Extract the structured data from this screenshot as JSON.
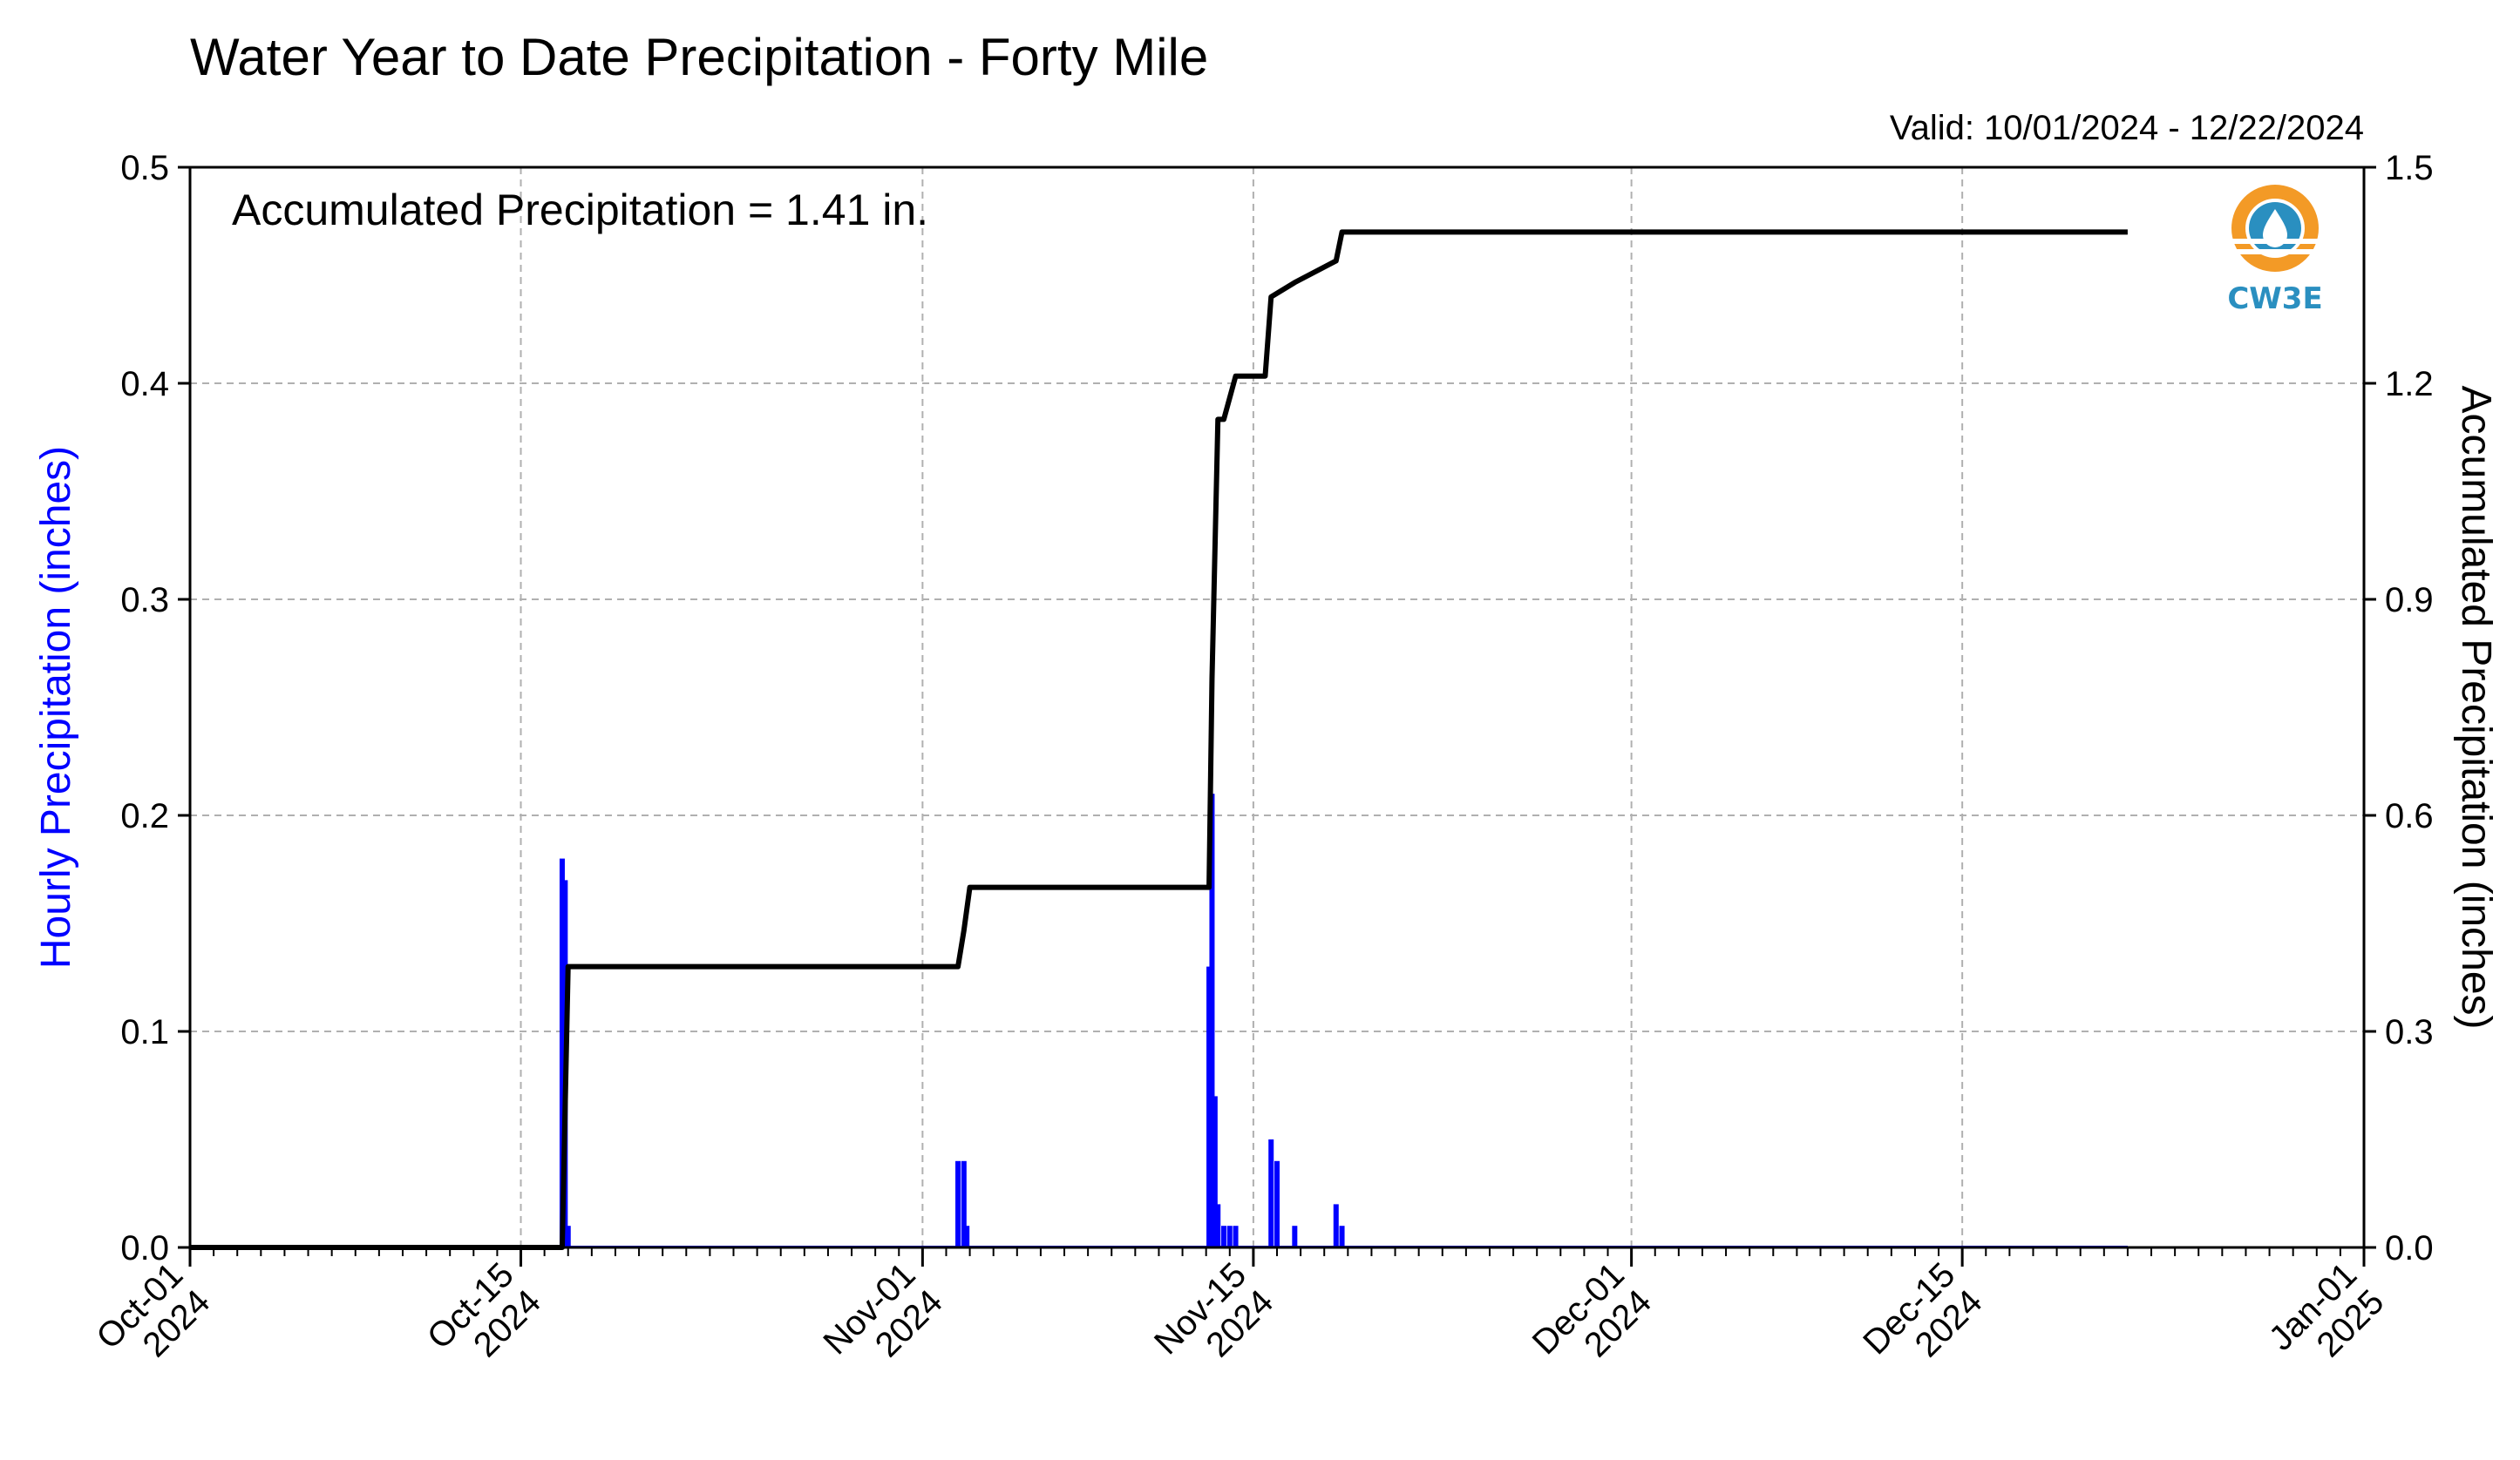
{
  "chart_data": {
    "type": "bar",
    "title": "Water Year to Date Precipitation - Forty Mile",
    "subtitle": "Valid: 10/01/2024 - 12/22/2024",
    "annotation": "Accumulated Precipitation = 1.41 in.",
    "ylabel_left": "Hourly Precipitation (inches)",
    "ylabel_right": "Accumulated Precipitation (inches)",
    "xlim": [
      "2024-10-01",
      "2025-01-01"
    ],
    "ylim_left": [
      0,
      0.5
    ],
    "ylim_right": [
      0,
      1.5
    ],
    "grid": true,
    "x_ticks": [
      {
        "date": "2024-10-01",
        "line1": "Oct-01",
        "line2": "2024"
      },
      {
        "date": "2024-10-15",
        "line1": "Oct-15",
        "line2": "2024"
      },
      {
        "date": "2024-11-01",
        "line1": "Nov-01",
        "line2": "2024"
      },
      {
        "date": "2024-11-15",
        "line1": "Nov-15",
        "line2": "2024"
      },
      {
        "date": "2024-12-01",
        "line1": "Dec-01",
        "line2": "2024"
      },
      {
        "date": "2024-12-15",
        "line1": "Dec-15",
        "line2": "2024"
      },
      {
        "date": "2025-01-01",
        "line1": "Jan-01",
        "line2": "2025"
      }
    ],
    "y_ticks_left": [
      "0.0",
      "0.1",
      "0.2",
      "0.3",
      "0.4",
      "0.5"
    ],
    "y_ticks_right": [
      "0.0",
      "0.3",
      "0.6",
      "0.9",
      "1.2",
      "1.5"
    ],
    "series": [
      {
        "type": "bar",
        "color": "#0000ff",
        "axis": "left",
        "x": [
          "2024-10-16 18:00",
          "2024-10-16 21:00",
          "2024-10-17 00:00",
          "2024-11-02 12:00",
          "2024-11-02 18:00",
          "2024-11-02 21:00",
          "2024-11-13 03:00",
          "2024-11-13 06:00",
          "2024-11-13 09:00",
          "2024-11-13 12:00",
          "2024-11-13 18:00",
          "2024-11-14 00:00",
          "2024-11-14 06:00",
          "2024-11-15 18:00",
          "2024-11-16 00:00",
          "2024-11-16 18:00",
          "2024-11-18 12:00",
          "2024-11-18 18:00"
        ],
        "values": [
          0.18,
          0.17,
          0.01,
          0.04,
          0.04,
          0.01,
          0.13,
          0.21,
          0.07,
          0.02,
          0.01,
          0.01,
          0.01,
          0.05,
          0.04,
          0.01,
          0.02,
          0.01
        ]
      },
      {
        "type": "step-line",
        "color": "#000000",
        "axis": "right",
        "x": [
          "2024-10-01 00:00",
          "2024-10-16 18:00",
          "2024-10-17 00:00",
          "2024-11-02 12:00",
          "2024-11-02 18:00",
          "2024-11-03 00:00",
          "2024-11-13 03:00",
          "2024-11-13 06:00",
          "2024-11-13 12:00",
          "2024-11-13 18:00",
          "2024-11-14 00:00",
          "2024-11-14 06:00",
          "2024-11-15 12:00",
          "2024-11-15 18:00",
          "2024-11-16 18:00",
          "2024-11-18 12:00",
          "2024-11-18 18:00",
          "2024-12-22 00:00"
        ],
        "values": [
          0.0,
          0.0,
          0.39,
          0.39,
          0.44,
          0.5,
          0.5,
          0.79,
          1.15,
          1.15,
          1.18,
          1.21,
          1.21,
          1.32,
          1.34,
          1.37,
          1.41,
          1.41
        ]
      }
    ],
    "logo": "CW3E"
  }
}
